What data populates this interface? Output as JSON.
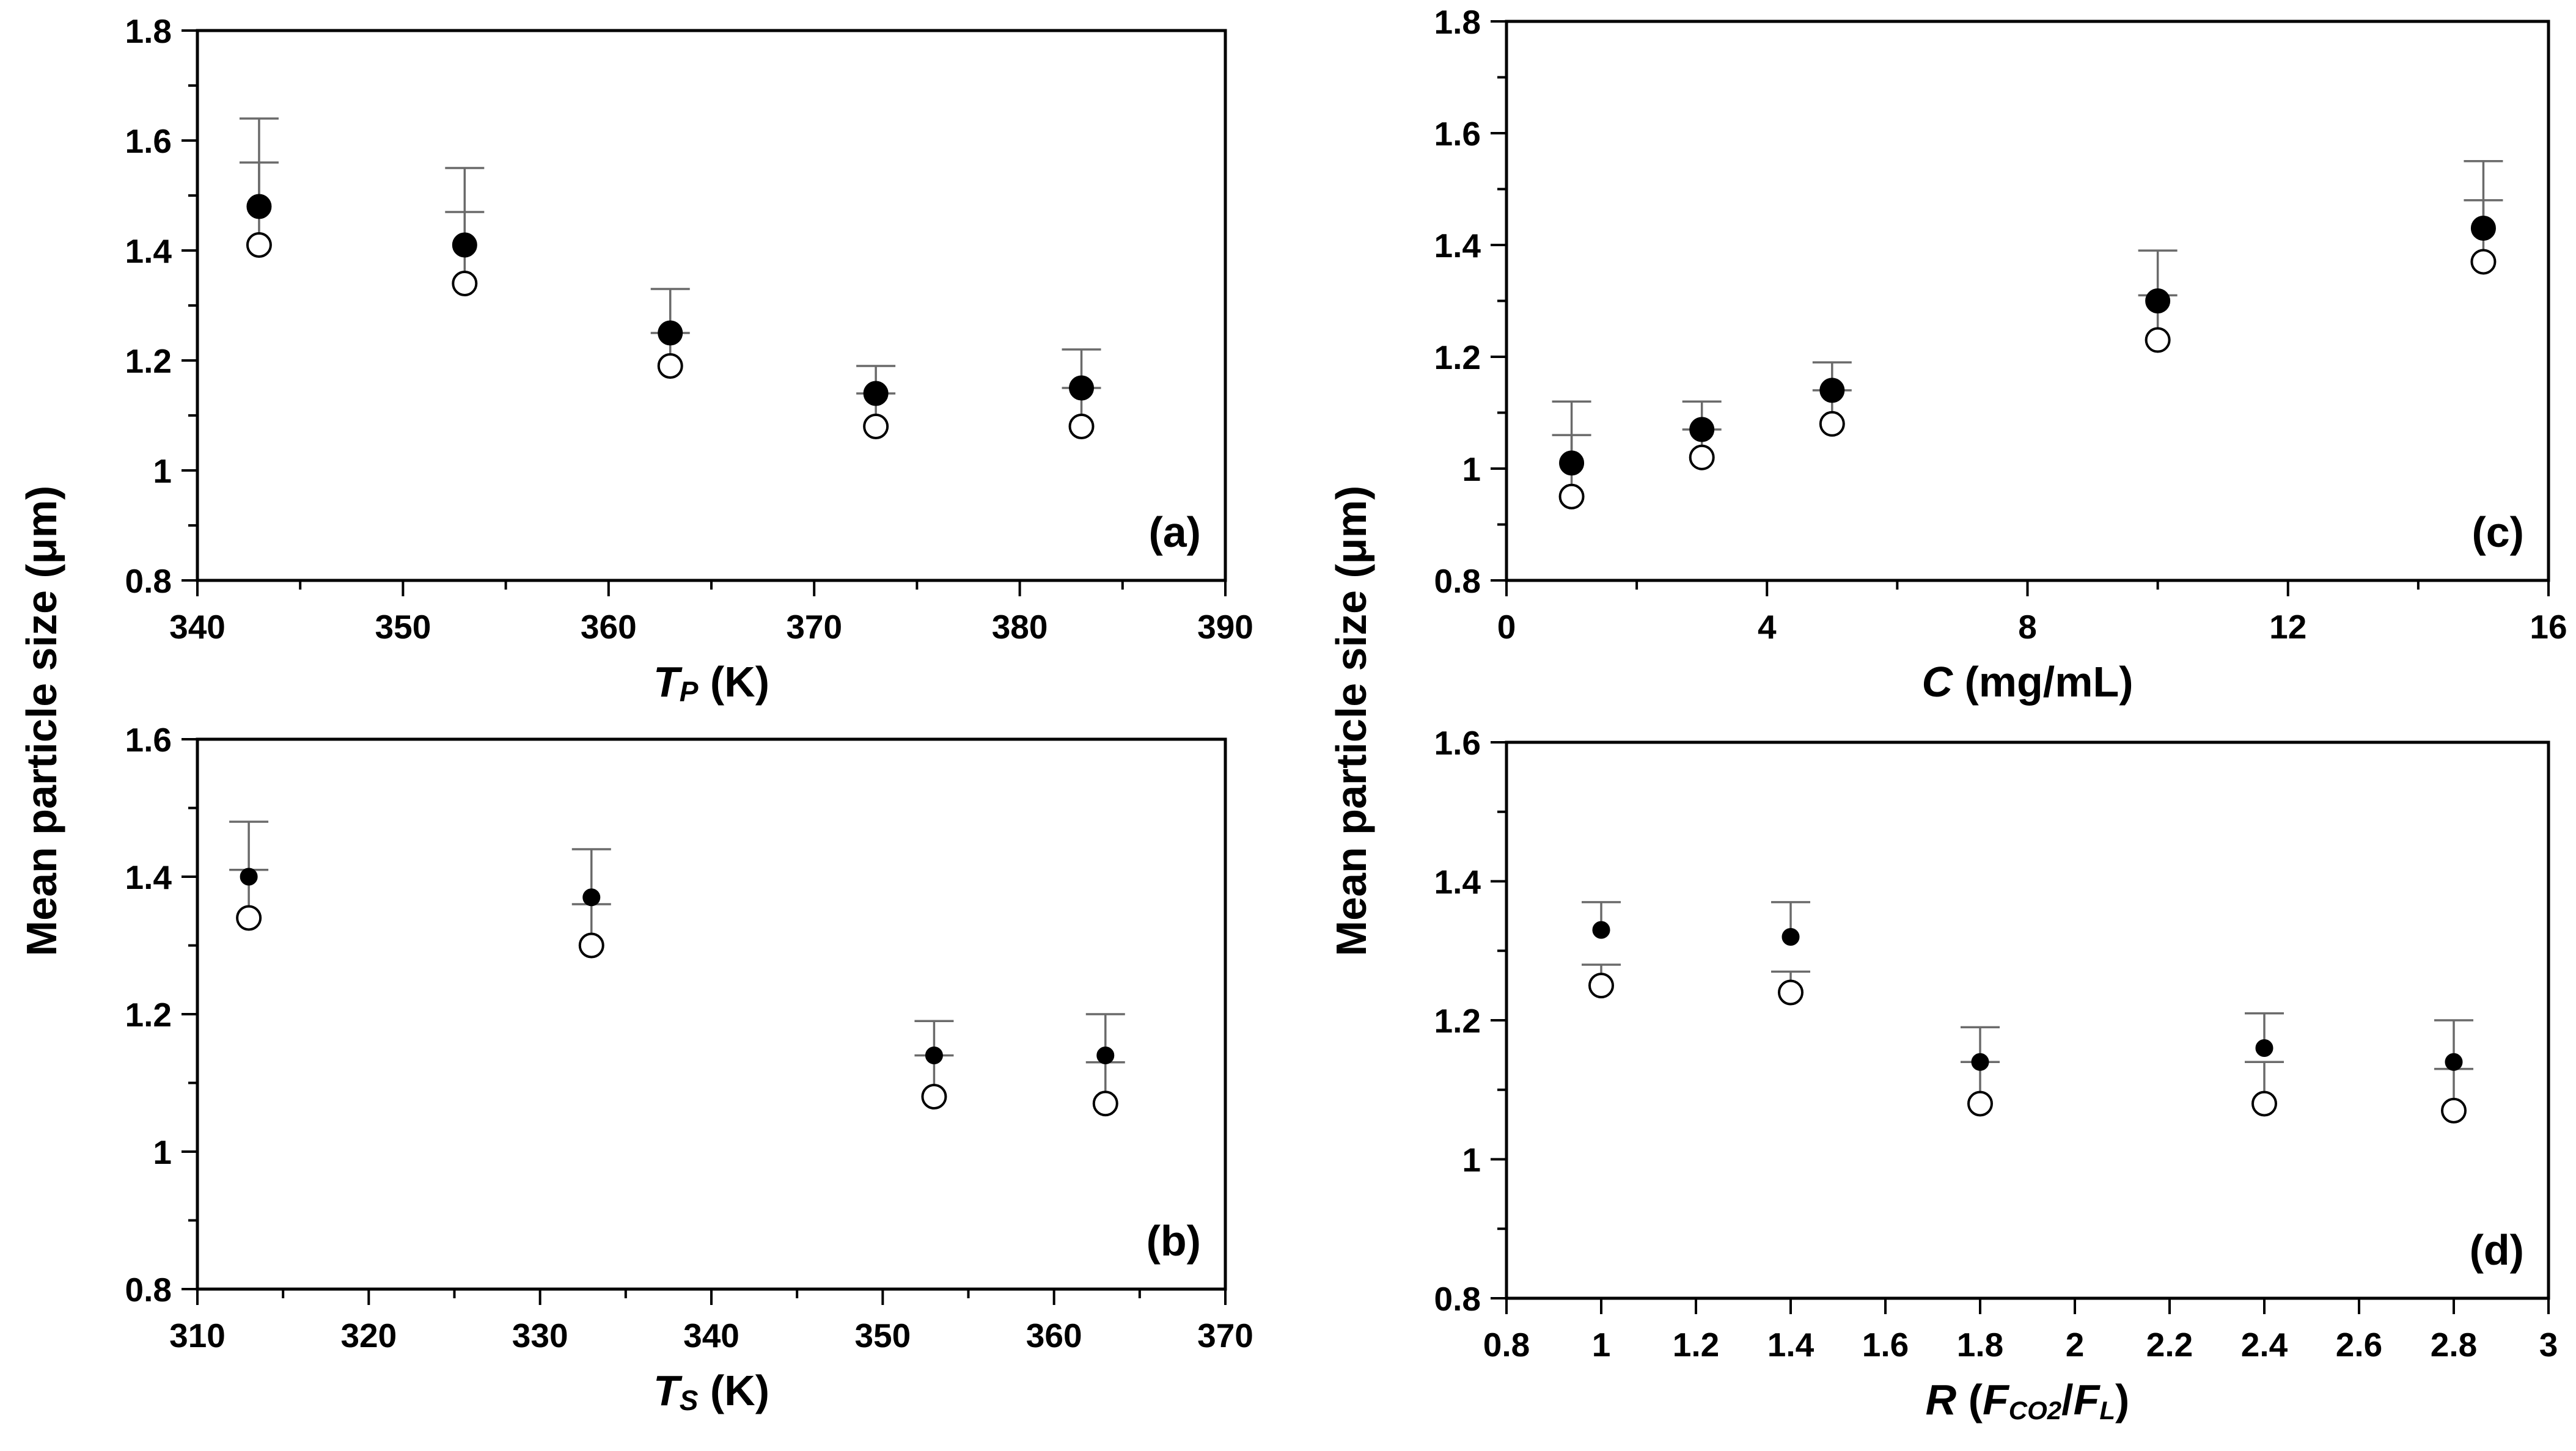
{
  "figure": {
    "shared_ylabel_top": "Mean particle size (μm)",
    "shared_ylabel_bottom": "Mean particle size (μm)"
  },
  "chart_data": [
    {
      "id": "a",
      "type": "scatter",
      "panel_label": "(a)",
      "xlabel": {
        "var": "T",
        "sub": "P",
        "unit": " (K)"
      },
      "ylabel": "Mean particle size (μm)",
      "xlim": [
        340,
        390
      ],
      "ylim": [
        0.8,
        1.8
      ],
      "xticks": [
        340,
        350,
        360,
        370,
        380,
        390
      ],
      "xtick_labels": [
        "340",
        "350",
        "360",
        "370",
        "380",
        "390"
      ],
      "yticks": [
        0.8,
        1.0,
        1.2,
        1.4,
        1.6,
        1.8
      ],
      "ytick_labels": [
        "0.8",
        "1",
        "1.2",
        "1.4",
        "1.6",
        "1.8"
      ],
      "series": [
        {
          "name": "filled",
          "x": [
            343,
            353,
            363,
            373,
            383
          ],
          "y": [
            1.48,
            1.41,
            1.25,
            1.14,
            1.15
          ],
          "err_upper": [
            1.64,
            1.55,
            1.33,
            1.19,
            1.22
          ]
        },
        {
          "name": "open",
          "x": [
            343,
            353,
            363,
            373,
            383
          ],
          "y": [
            1.41,
            1.34,
            1.19,
            1.08,
            1.08
          ],
          "err_upper": [
            1.56,
            1.47,
            1.25,
            1.14,
            1.15
          ]
        }
      ]
    },
    {
      "id": "b",
      "type": "scatter",
      "panel_label": "(b)",
      "xlabel": {
        "var": "T",
        "sub": "S",
        "unit": " (K)"
      },
      "ylabel": "Mean particle size (μm)",
      "xlim": [
        310,
        370
      ],
      "ylim": [
        0.8,
        1.6
      ],
      "xticks": [
        310,
        320,
        330,
        340,
        350,
        360,
        370
      ],
      "xtick_labels": [
        "310",
        "320",
        "330",
        "340",
        "350",
        "360",
        "370"
      ],
      "yticks": [
        0.8,
        1.0,
        1.2,
        1.4,
        1.6
      ],
      "ytick_labels": [
        "0.8",
        "1",
        "1.2",
        "1.4",
        "1.6"
      ],
      "series": [
        {
          "name": "filled",
          "x": [
            313,
            333,
            353,
            363
          ],
          "y": [
            1.4,
            1.37,
            1.14,
            1.14
          ],
          "err_upper": [
            1.48,
            1.44,
            1.19,
            1.2
          ]
        },
        {
          "name": "open",
          "x": [
            313,
            333,
            353,
            363
          ],
          "y": [
            1.34,
            1.3,
            1.08,
            1.07
          ],
          "err_upper": [
            1.41,
            1.36,
            1.14,
            1.13
          ]
        }
      ]
    },
    {
      "id": "c",
      "type": "scatter",
      "panel_label": "(c)",
      "xlabel": {
        "var": "C",
        "sub": "",
        "unit": " (mg/mL)"
      },
      "ylabel": "Mean particle size (μm)",
      "xlim": [
        0,
        16
      ],
      "ylim": [
        0.8,
        1.8
      ],
      "xticks": [
        0,
        4,
        8,
        12,
        16
      ],
      "xtick_labels": [
        "0",
        "4",
        "8",
        "12",
        "16"
      ],
      "yticks": [
        0.8,
        1.0,
        1.2,
        1.4,
        1.6,
        1.8
      ],
      "ytick_labels": [
        "0.8",
        "1",
        "1.2",
        "1.4",
        "1.6",
        "1.8"
      ],
      "series": [
        {
          "name": "filled",
          "x": [
            1,
            3,
            5,
            10,
            15
          ],
          "y": [
            1.01,
            1.07,
            1.14,
            1.3,
            1.43
          ],
          "err_upper": [
            1.12,
            1.12,
            1.19,
            1.39,
            1.55
          ]
        },
        {
          "name": "open",
          "x": [
            1,
            3,
            5,
            10,
            15
          ],
          "y": [
            0.95,
            1.02,
            1.08,
            1.23,
            1.37
          ],
          "err_upper": [
            1.06,
            1.07,
            1.14,
            1.31,
            1.48
          ]
        }
      ]
    },
    {
      "id": "d",
      "type": "scatter",
      "panel_label": "(d)",
      "xlabel": {
        "var": "R",
        "sub": "",
        "unit": ""
      },
      "xlabel_ratio": {
        "open": " (",
        "num": "F",
        "num_sub": "CO2",
        "slash": "/",
        "den": "F",
        "den_sub": "L",
        "close": ")"
      },
      "ylabel": "Mean particle size (μm)",
      "xlim": [
        0.8,
        3.0
      ],
      "ylim": [
        0.8,
        1.6
      ],
      "xticks": [
        0.8,
        1.0,
        1.2,
        1.4,
        1.6,
        1.8,
        2.0,
        2.2,
        2.4,
        2.6,
        2.8,
        3.0
      ],
      "xtick_labels": [
        "0.8",
        "1",
        "1.2",
        "1.4",
        "1.6",
        "1.8",
        "2",
        "2.2",
        "2.4",
        "2.6",
        "2.8",
        "3"
      ],
      "yticks": [
        0.8,
        1.0,
        1.2,
        1.4,
        1.6
      ],
      "ytick_labels": [
        "0.8",
        "1",
        "1.2",
        "1.4",
        "1.6"
      ],
      "series": [
        {
          "name": "filled",
          "x": [
            1.0,
            1.4,
            1.8,
            2.4,
            2.8
          ],
          "y": [
            1.33,
            1.32,
            1.14,
            1.16,
            1.14
          ],
          "err_upper": [
            1.37,
            1.37,
            1.19,
            1.21,
            1.2
          ]
        },
        {
          "name": "open",
          "x": [
            1.0,
            1.4,
            1.8,
            2.4,
            2.8
          ],
          "y": [
            1.25,
            1.24,
            1.08,
            1.08,
            1.07
          ],
          "err_upper": [
            1.28,
            1.27,
            1.14,
            1.14,
            1.13
          ]
        }
      ]
    }
  ]
}
